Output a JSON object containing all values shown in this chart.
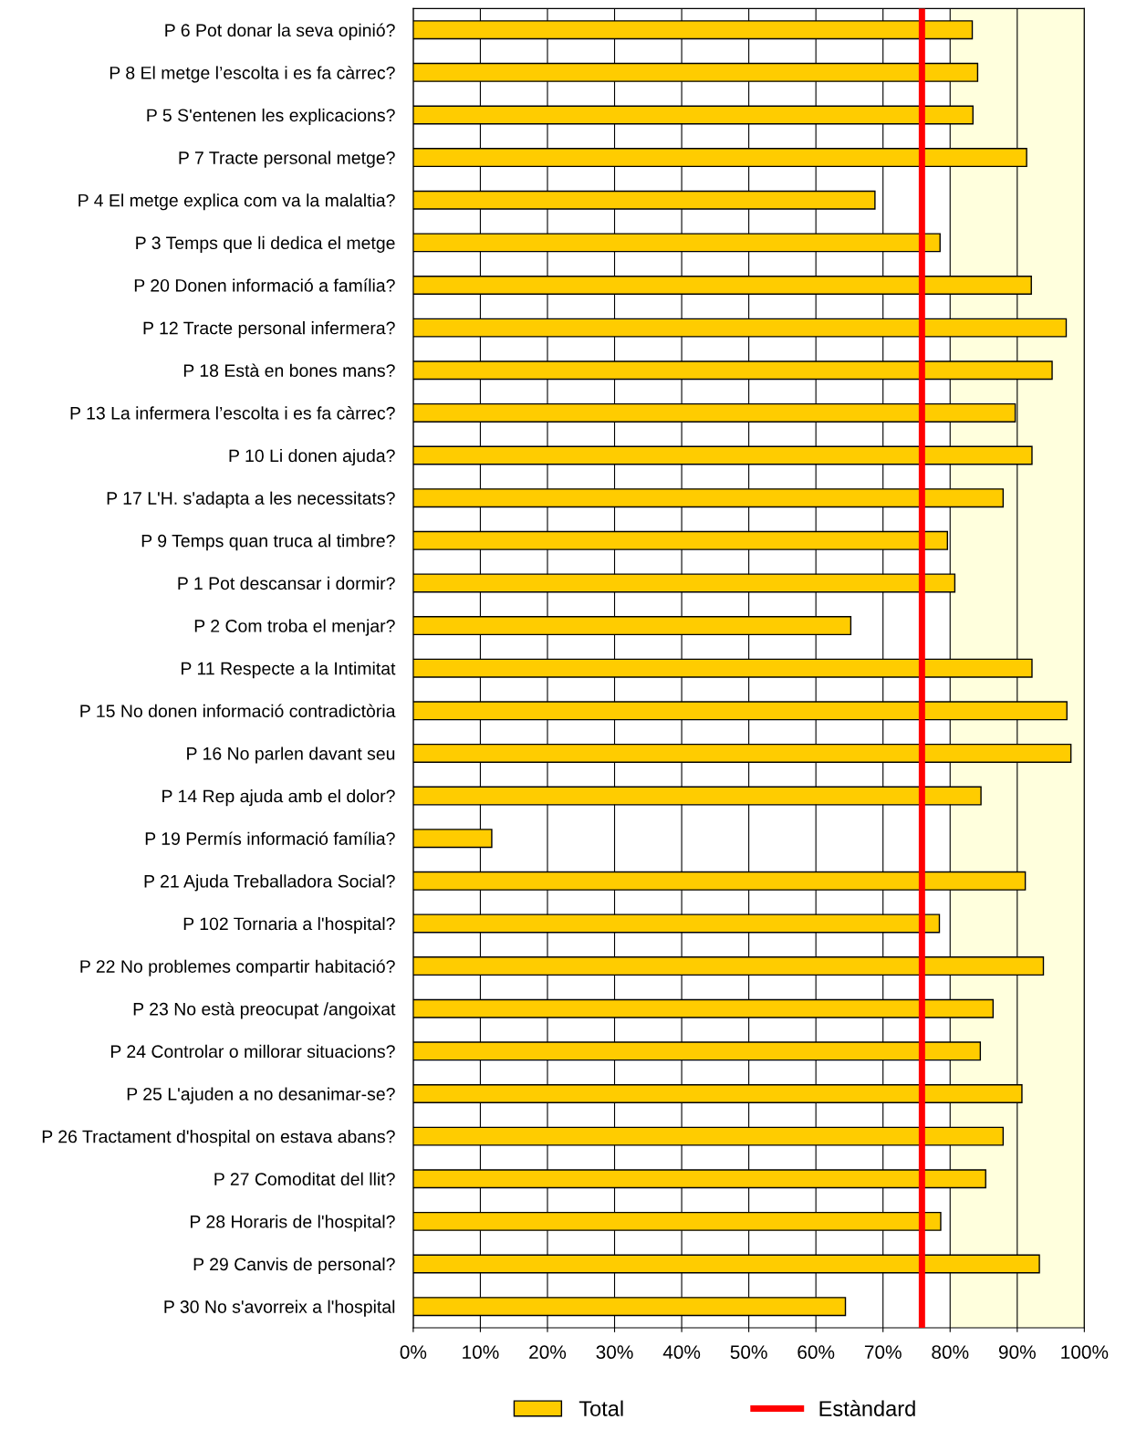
{
  "chart_data": {
    "type": "bar",
    "orientation": "horizontal",
    "categories": [
      "P 6 Pot donar la seva opinió?",
      "P 8 El metge l’escolta i es fa càrrec?",
      "P 5 S'entenen les explicacions?",
      "P 7 Tracte personal metge?",
      "P 4 El metge explica com va la malaltia?",
      "P 3 Temps que li dedica el metge",
      "P 20 Donen informació a família?",
      "P 12 Tracte personal infermera?",
      "P 18 Està en bones mans?",
      "P 13 La infermera l’escolta i es fa càrrec?",
      "P 10 Li donen ajuda?",
      "P 17 L'H. s'adapta a les necessitats?",
      "P 9 Temps quan truca al timbre?",
      "P 1 Pot descansar i dormir?",
      "P 2 Com troba el menjar?",
      "P 11 Respecte a la Intimitat",
      "P 15 No donen informació contradictòria",
      "P 16 No parlen davant seu",
      "P 14 Rep ajuda amb el dolor?",
      "P 19 Permís informació família?",
      "P 21 Ajuda Treballadora Social?",
      "P 102 Tornaria a l'hospital?",
      "P 22 No problemes compartir habitació?",
      "P 23 No està preocupat /angoixat",
      "P 24 Controlar o millorar situacions?",
      "P 25 L'ajuden a no desanimar-se?",
      "P 26 Tractament d'hospital on estava abans?",
      "P 27 Comoditat del llit?",
      "P 28 Horaris de l'hospital?",
      "P 29 Canvis de personal?",
      "P 30 No s'avorreix a l'hospital"
    ],
    "series": [
      {
        "name": "Total",
        "color": "#ffcc00",
        "values": [
          83.3,
          84.1,
          83.4,
          91.4,
          68.8,
          78.5,
          92.1,
          97.3,
          95.2,
          89.7,
          92.2,
          87.9,
          79.6,
          80.7,
          65.2,
          92.2,
          97.4,
          98.0,
          84.6,
          11.7,
          91.2,
          78.4,
          93.9,
          86.4,
          84.5,
          90.7,
          87.9,
          85.3,
          78.6,
          93.3,
          64.4
        ]
      }
    ],
    "xlim": [
      0,
      100
    ],
    "xticks": [
      {
        "value": 0,
        "label": "0%"
      },
      {
        "value": 10,
        "label": "10%"
      },
      {
        "value": 20,
        "label": "20%"
      },
      {
        "value": 30,
        "label": "30%"
      },
      {
        "value": 40,
        "label": "40%"
      },
      {
        "value": 50,
        "label": "50%"
      },
      {
        "value": 60,
        "label": "60%"
      },
      {
        "value": 70,
        "label": "70%"
      },
      {
        "value": 80,
        "label": "80%"
      },
      {
        "value": 90,
        "label": "90%"
      },
      {
        "value": 100,
        "label": "100%"
      }
    ],
    "ref_lines": [
      {
        "axis": "x",
        "value": 75.8,
        "label": "Estàndard",
        "color": "#ff0000",
        "line_style": "solid"
      }
    ],
    "bands": [
      {
        "axis": "x",
        "from": 80,
        "to": 100,
        "color": "#ffffdd"
      }
    ],
    "grid": "x",
    "legend": "bottom"
  }
}
